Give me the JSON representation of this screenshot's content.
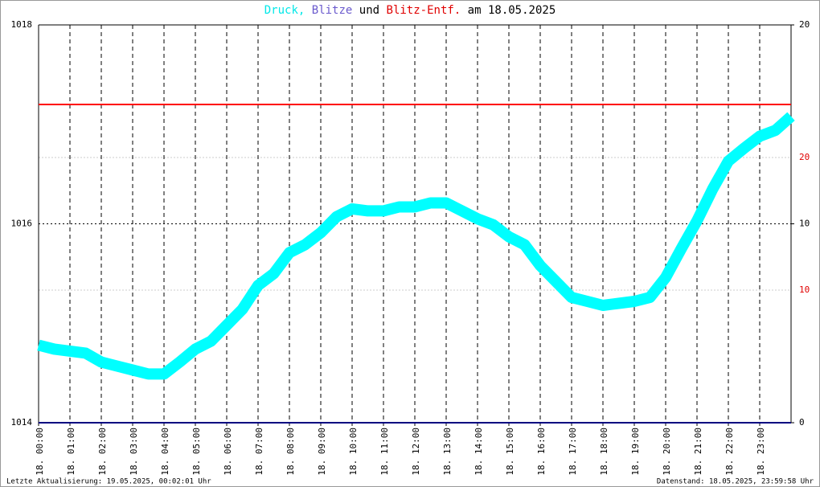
{
  "chart_data": {
    "type": "line",
    "title_parts": [
      {
        "text": "Druck,",
        "color": "#00e8e8"
      },
      {
        "text": "Blitze",
        "color": "#6a5acd"
      },
      {
        "text": "und",
        "color": "#000000"
      },
      {
        "text": "Blitz-Entf.",
        "color": "#e00000"
      },
      {
        "text": "am 18.05.2025",
        "color": "#000000"
      }
    ],
    "x": [
      0,
      0.5,
      1,
      1.5,
      2,
      2.5,
      3,
      3.5,
      4,
      4.5,
      5,
      5.5,
      6,
      6.5,
      7,
      7.5,
      8,
      8.5,
      9,
      9.5,
      10,
      10.5,
      11,
      11.5,
      12,
      12.5,
      13,
      13.5,
      14,
      14.5,
      15,
      15.5,
      16,
      16.5,
      17,
      17.5,
      18,
      18.5,
      19,
      19.5,
      20,
      20.5,
      21,
      21.5,
      22,
      22.5,
      23,
      23.5,
      24
    ],
    "series": [
      {
        "name": "Druck",
        "color": "#00ffff",
        "values": [
          1014.78,
          1014.74,
          1014.72,
          1014.7,
          1014.61,
          1014.57,
          1014.53,
          1014.49,
          1014.49,
          1014.61,
          1014.74,
          1014.82,
          1014.98,
          1015.14,
          1015.38,
          1015.5,
          1015.71,
          1015.79,
          1015.91,
          1016.07,
          1016.15,
          1016.13,
          1016.13,
          1016.17,
          1016.17,
          1016.21,
          1016.21,
          1016.13,
          1016.05,
          1015.99,
          1015.87,
          1015.79,
          1015.58,
          1015.42,
          1015.26,
          1015.22,
          1015.18,
          1015.2,
          1015.22,
          1015.26,
          1015.46,
          1015.75,
          1016.03,
          1016.35,
          1016.63,
          1016.76,
          1016.88,
          1016.94,
          1017.08
        ]
      }
    ],
    "reference_lines": [
      {
        "value": 1017.2,
        "color": "#ff0000"
      },
      {
        "value": 1014,
        "color": "#000080"
      }
    ],
    "xlim": [
      0,
      24
    ],
    "xticks": [
      {
        "value": 0,
        "label": "18. 00:00"
      },
      {
        "value": 1,
        "label": "18. 01:00"
      },
      {
        "value": 2,
        "label": "18. 02:00"
      },
      {
        "value": 3,
        "label": "18. 03:00"
      },
      {
        "value": 4,
        "label": "18. 04:00"
      },
      {
        "value": 5,
        "label": "18. 05:00"
      },
      {
        "value": 6,
        "label": "18. 06:00"
      },
      {
        "value": 7,
        "label": "18. 07:00"
      },
      {
        "value": 8,
        "label": "18. 08:00"
      },
      {
        "value": 9,
        "label": "18. 09:00"
      },
      {
        "value": 10,
        "label": "18. 10:00"
      },
      {
        "value": 11,
        "label": "18. 11:00"
      },
      {
        "value": 12,
        "label": "18. 12:00"
      },
      {
        "value": 13,
        "label": "18. 13:00"
      },
      {
        "value": 14,
        "label": "18. 14:00"
      },
      {
        "value": 15,
        "label": "18. 15:00"
      },
      {
        "value": 16,
        "label": "18. 16:00"
      },
      {
        "value": 17,
        "label": "18. 17:00"
      },
      {
        "value": 18,
        "label": "18. 18:00"
      },
      {
        "value": 19,
        "label": "18. 19:00"
      },
      {
        "value": 20,
        "label": "18. 20:00"
      },
      {
        "value": 21,
        "label": "18. 21:00"
      },
      {
        "value": 22,
        "label": "18. 22:00"
      },
      {
        "value": 23,
        "label": "18. 23:00"
      }
    ],
    "ylim": [
      1014,
      1018
    ],
    "yticks": [
      1014,
      1016,
      1018
    ],
    "y2lim": [
      0,
      20
    ],
    "y2ticks": [
      0,
      10,
      20
    ],
    "y2color": "#000000",
    "y3lim": [
      0,
      30
    ],
    "y3ticks": [
      10,
      20
    ],
    "y3color": "#e00000",
    "footer_left": "Letzte Aktualisierung: 19.05.2025, 00:02:01 Uhr",
    "footer_right": "Datenstand: 18.05.2025, 23:59:58 Uhr"
  }
}
